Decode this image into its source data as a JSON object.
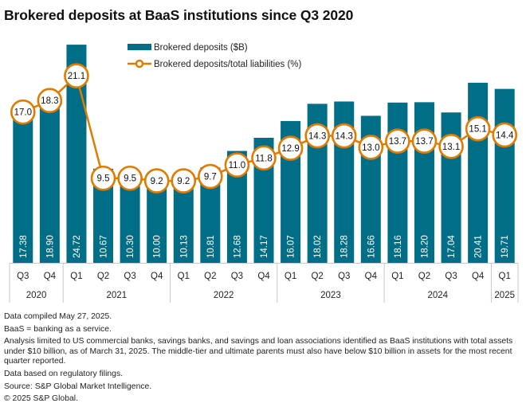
{
  "chart_data": {
    "type": "bar",
    "title": "Brokered deposits at BaaS institutions since Q3 2020",
    "xlabel": "",
    "ylabel": "",
    "ylim": [
      0,
      25
    ],
    "grid": false,
    "legend_position": "top-center",
    "categories": [
      "Q3",
      "Q4",
      "Q1",
      "Q2",
      "Q3",
      "Q4",
      "Q1",
      "Q2",
      "Q3",
      "Q4",
      "Q1",
      "Q2",
      "Q3",
      "Q4",
      "Q1",
      "Q2",
      "Q3",
      "Q4",
      "Q1"
    ],
    "year_groups": [
      {
        "year": "2020",
        "count": 2
      },
      {
        "year": "2021",
        "count": 4
      },
      {
        "year": "2022",
        "count": 4
      },
      {
        "year": "2023",
        "count": 4
      },
      {
        "year": "2024",
        "count": 4
      },
      {
        "year": "2025",
        "count": 1
      }
    ],
    "series": [
      {
        "name": "Brokered deposits ($B)",
        "type": "bar",
        "color": "#006E87",
        "values": [
          17.38,
          18.9,
          24.72,
          10.67,
          10.3,
          10.0,
          10.13,
          10.81,
          12.68,
          14.17,
          16.07,
          18.02,
          18.28,
          16.66,
          18.16,
          18.2,
          17.04,
          20.41,
          19.71
        ],
        "labels": [
          "17.38",
          "18.90",
          "24.72",
          "10.67",
          "10.30",
          "10.00",
          "10.13",
          "10.81",
          "12.68",
          "14.17",
          "16.07",
          "18.02",
          "18.28",
          "16.66",
          "18.16",
          "18.20",
          "17.04",
          "20.41",
          "19.71"
        ]
      },
      {
        "name": "Brokered deposits/total liabilities (%)",
        "type": "line",
        "color": "#E07B00",
        "values": [
          17.0,
          18.3,
          21.1,
          9.5,
          9.5,
          9.2,
          9.2,
          9.7,
          11.0,
          11.8,
          12.9,
          14.3,
          14.3,
          13.0,
          13.7,
          13.7,
          13.1,
          15.1,
          14.4
        ],
        "labels": [
          "17.0",
          "18.3",
          "21.1",
          "9.5",
          "9.5",
          "9.2",
          "9.2",
          "9.7",
          "11.0",
          "11.8",
          "12.9",
          "14.3",
          "14.3",
          "13.0",
          "13.7",
          "13.7",
          "13.1",
          "15.1",
          "14.4"
        ]
      }
    ]
  },
  "legend": {
    "bar_label": "Brokered deposits ($B)",
    "line_label": "Brokered deposits/total liabilities (%)"
  },
  "notes": [
    "Data compiled May 27, 2025.",
    "BaaS = banking as a service.",
    "Analysis limited to US commercial banks, savings banks, and savings and loan associations identified as BaaS institutions with total assets under $10 billion, as of March 31, 2025. The middle-tier and ultimate parents must also have below $10 billion in assets for the most recent quarter reported.",
    "Data based on regulatory filings.",
    "Source: S&P Global Market Intelligence.",
    "© 2025 S&P Global."
  ]
}
